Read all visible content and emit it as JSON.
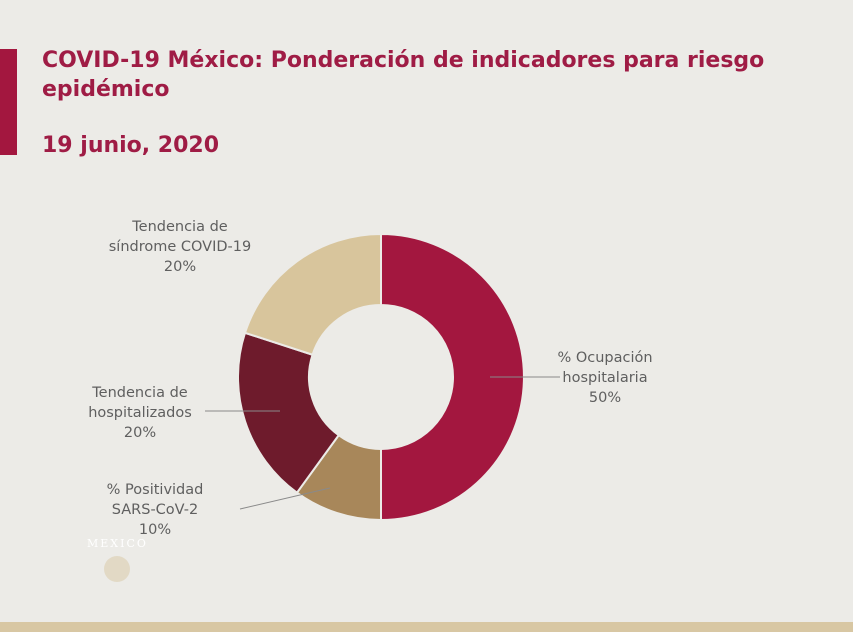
{
  "header": {
    "title": "COVID-19 México: Ponderación de indicadores para riesgo epidémico",
    "date": "19 junio, 2020"
  },
  "logo": {
    "text": "GOBIERNO DE MÉXICO"
  },
  "chart_data": {
    "type": "pie",
    "variant": "donut",
    "title": "COVID-19 México: Ponderación de indicadores para riesgo epidémico",
    "slices": [
      {
        "label_lines": [
          "% Ocupación",
          "hospitalaria",
          "50%"
        ],
        "label": "% Ocupación hospitalaria",
        "value": 50,
        "color": "#a3173f"
      },
      {
        "label_lines": [
          "% Positividad",
          "SARS-CoV-2",
          "10%"
        ],
        "label": "% Positividad SARS-CoV-2",
        "value": 10,
        "color": "#a8875a"
      },
      {
        "label_lines": [
          "Tendencia de",
          "hospitalizados",
          "20%"
        ],
        "label": "Tendencia de hospitalizados",
        "value": 20,
        "color": "#6e1b2c"
      },
      {
        "label_lines": [
          "Tendencia de",
          "síndrome COVID-19",
          "20%"
        ],
        "label": "Tendencia de síndrome COVID-19",
        "value": 20,
        "color": "#d8c59c"
      }
    ]
  }
}
